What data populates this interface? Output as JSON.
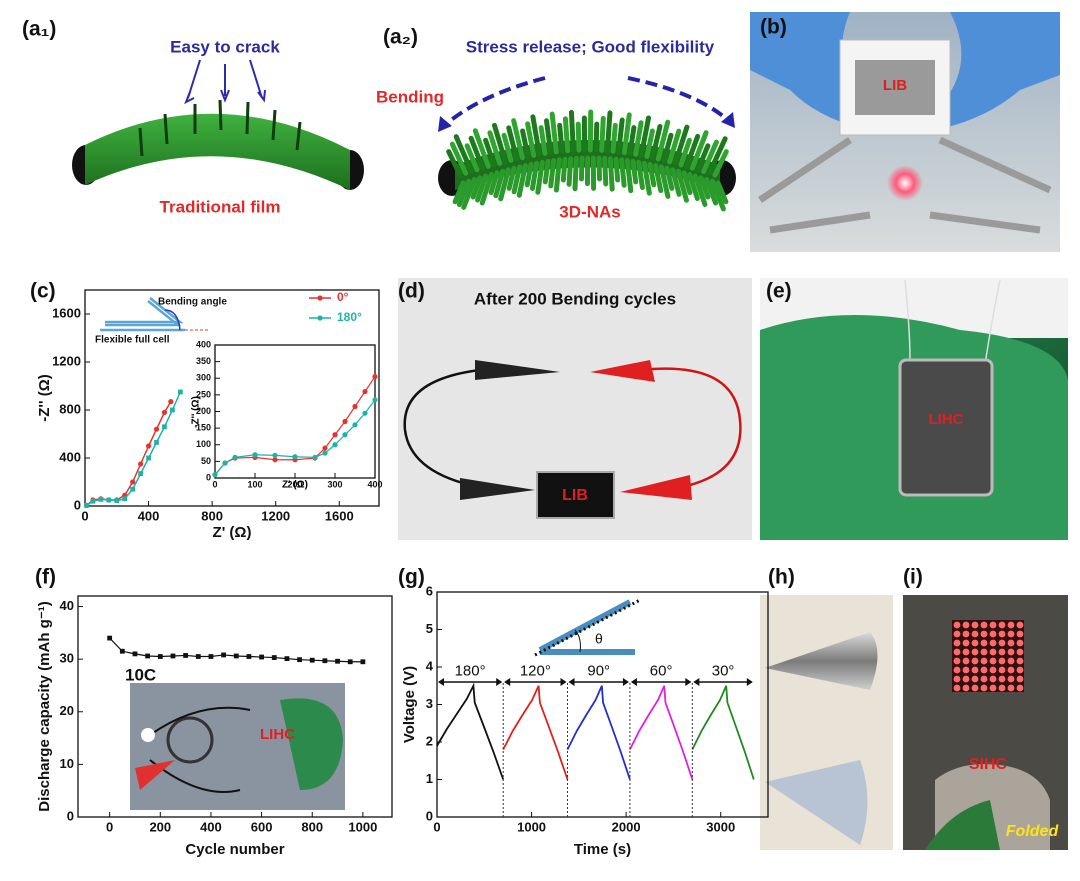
{
  "panel_a1": {
    "label": "(a₁)",
    "title": "Easy to crack",
    "caption": "Traditional film"
  },
  "panel_a2": {
    "label": "(a₂)",
    "title": "Stress release; Good flexibility",
    "side_label": "Bending",
    "caption": "3D-NAs"
  },
  "panel_b": {
    "label": "(b)",
    "tag": "LIB"
  },
  "panel_d": {
    "label": "(d)",
    "title": "After 200 Bending cycles",
    "tag": "LIB"
  },
  "panel_e": {
    "label": "(e)",
    "tag": "LIHC"
  },
  "panel_h": {
    "label": "(h)"
  },
  "panel_i": {
    "label": "(i)",
    "tag": "SIHC",
    "caption": "Folded"
  },
  "chart_data": [
    {
      "type": "line",
      "label": "(c)",
      "xlabel": "Z' (Ω)",
      "ylabel": "-Z'' (Ω)",
      "xlim": [
        0,
        1850
      ],
      "xticks": [
        0,
        400,
        800,
        1200,
        1600
      ],
      "ylim": [
        0,
        1800
      ],
      "yticks": [
        0,
        400,
        800,
        1200,
        1600
      ],
      "legend": "upper right",
      "diagram_labels": [
        "Bending angle",
        "Flexible full cell"
      ],
      "series": [
        {
          "name": "0°",
          "color": "#e3342f",
          "x": [
            10,
            50,
            100,
            150,
            200,
            250,
            300,
            350,
            400,
            450,
            500,
            540
          ],
          "values": [
            5,
            50,
            60,
            50,
            50,
            90,
            200,
            350,
            500,
            640,
            780,
            870
          ]
        },
        {
          "name": "180°",
          "color": "#1fb3a6",
          "x": [
            10,
            50,
            100,
            150,
            200,
            250,
            300,
            350,
            400,
            450,
            500,
            550,
            600
          ],
          "values": [
            5,
            40,
            55,
            50,
            45,
            60,
            140,
            270,
            400,
            530,
            660,
            800,
            950
          ]
        }
      ],
      "inset": {
        "xlabel": "Z' (Ω)",
        "ylabel": "-Z'' (Ω)",
        "xlim": [
          0,
          400
        ],
        "xticks": [
          0,
          100,
          200,
          300,
          400
        ],
        "ylim": [
          0,
          400
        ],
        "yticks": [
          0,
          50,
          100,
          150,
          200,
          250,
          300,
          350,
          400
        ],
        "x": [
          0,
          25,
          50,
          100,
          150,
          200,
          250,
          275,
          300,
          325,
          350,
          375,
          400
        ],
        "series": [
          {
            "color": "#e3342f",
            "values": [
              10,
              45,
              60,
              62,
              55,
              55,
              60,
              90,
              130,
              170,
              215,
              260,
              305
            ]
          },
          {
            "color": "#1fb3a6",
            "values": [
              10,
              45,
              62,
              70,
              68,
              64,
              62,
              75,
              100,
              130,
              160,
              195,
              235
            ]
          }
        ]
      }
    },
    {
      "type": "scatter",
      "label": "(f)",
      "xlabel": "Cycle number",
      "ylabel": "Discharge capacity (mAh g⁻¹)",
      "annotation": "10C",
      "inset_tag": "LIHC",
      "xlim": [
        -125,
        1115
      ],
      "xticks": [
        0,
        200,
        400,
        600,
        800,
        1000
      ],
      "ylim": [
        0,
        42
      ],
      "yticks": [
        0,
        10,
        20,
        30,
        40
      ],
      "color": "#111111",
      "x": [
        0,
        50,
        100,
        150,
        200,
        250,
        300,
        350,
        400,
        450,
        500,
        550,
        600,
        650,
        700,
        750,
        800,
        850,
        900,
        950,
        1000
      ],
      "values": [
        34,
        31.5,
        31,
        30.6,
        30.5,
        30.6,
        30.7,
        30.5,
        30.5,
        30.8,
        30.6,
        30.5,
        30.4,
        30.3,
        30.1,
        29.9,
        29.8,
        29.7,
        29.6,
        29.5,
        29.5
      ]
    },
    {
      "type": "line",
      "label": "(g)",
      "xlabel": "Time (s)",
      "ylabel": "Voltage (V)",
      "inset_label": "θ",
      "xlim": [
        0,
        3500
      ],
      "xticks": [
        0,
        1000,
        2000,
        3000
      ],
      "ylim": [
        0,
        6
      ],
      "yticks": [
        0,
        1,
        2,
        3,
        4,
        5,
        6
      ],
      "series": [
        {
          "name": "180°",
          "color": "#111111",
          "x": [
            0,
            105,
            210,
            315,
            385,
            399,
            490,
            595,
            700
          ],
          "values": [
            1.9,
            2.35,
            2.75,
            3.15,
            3.5,
            3.05,
            2.45,
            1.75,
            1.0
          ]
        },
        {
          "name": "120°",
          "color": "#e0201b",
          "x": [
            700,
            802,
            904,
            1006,
            1074,
            1088,
            1176,
            1278,
            1380
          ],
          "values": [
            1.8,
            2.3,
            2.72,
            3.12,
            3.5,
            3.05,
            2.45,
            1.75,
            1.0
          ]
        },
        {
          "name": "90°",
          "color": "#1f2fd0",
          "x": [
            1380,
            1479,
            1578,
            1677,
            1743,
            1756,
            1842,
            1941,
            2040
          ],
          "values": [
            1.8,
            2.3,
            2.72,
            3.12,
            3.5,
            3.05,
            2.45,
            1.75,
            1.0
          ]
        },
        {
          "name": "60°",
          "color": "#e020e0",
          "x": [
            2040,
            2139,
            2238,
            2337,
            2403,
            2416,
            2502,
            2601,
            2700
          ],
          "values": [
            1.8,
            2.3,
            2.72,
            3.12,
            3.5,
            3.05,
            2.45,
            1.75,
            1.0
          ]
        },
        {
          "name": "30°",
          "color": "#1f8a1f",
          "x": [
            2700,
            2798,
            2895,
            2993,
            3058,
            3071,
            3155,
            3253,
            3350
          ],
          "values": [
            1.8,
            2.3,
            2.72,
            3.12,
            3.5,
            3.05,
            2.45,
            1.75,
            1.0
          ]
        }
      ]
    }
  ]
}
